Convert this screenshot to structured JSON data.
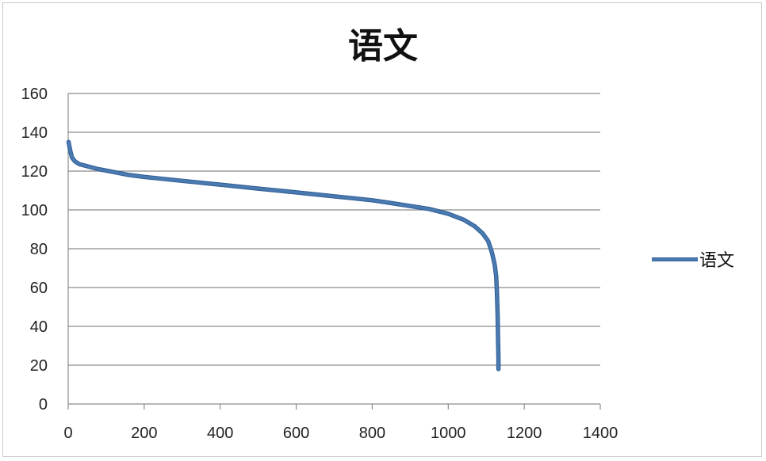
{
  "chart_data": {
    "type": "line",
    "title": "语文",
    "xlabel": "",
    "ylabel": "",
    "xlim": [
      0,
      1400
    ],
    "ylim": [
      0,
      160
    ],
    "xticks": [
      0,
      200,
      400,
      600,
      800,
      1000,
      1200,
      1400
    ],
    "yticks": [
      0,
      20,
      40,
      60,
      80,
      100,
      120,
      140,
      160
    ],
    "grid": "horizontal",
    "legend": "right",
    "series": [
      {
        "name": "语文",
        "color": "#4a7ab0",
        "points": [
          [
            1,
            135
          ],
          [
            3,
            133
          ],
          [
            6,
            130
          ],
          [
            10,
            127
          ],
          [
            18,
            125
          ],
          [
            30,
            123.5
          ],
          [
            50,
            122.5
          ],
          [
            80,
            121
          ],
          [
            120,
            119.5
          ],
          [
            160,
            118
          ],
          [
            200,
            117
          ],
          [
            250,
            116
          ],
          [
            300,
            115
          ],
          [
            350,
            114
          ],
          [
            400,
            113
          ],
          [
            450,
            112
          ],
          [
            500,
            111
          ],
          [
            550,
            110
          ],
          [
            600,
            109
          ],
          [
            650,
            108
          ],
          [
            700,
            107
          ],
          [
            750,
            106
          ],
          [
            800,
            105
          ],
          [
            850,
            103.5
          ],
          [
            900,
            102
          ],
          [
            950,
            100.5
          ],
          [
            1000,
            98
          ],
          [
            1040,
            95
          ],
          [
            1070,
            91.5
          ],
          [
            1090,
            88
          ],
          [
            1105,
            84
          ],
          [
            1115,
            78
          ],
          [
            1122,
            72
          ],
          [
            1126,
            66
          ],
          [
            1128,
            58
          ],
          [
            1130,
            45
          ],
          [
            1131,
            33
          ],
          [
            1132,
            23
          ],
          [
            1132,
            18
          ]
        ]
      }
    ]
  }
}
